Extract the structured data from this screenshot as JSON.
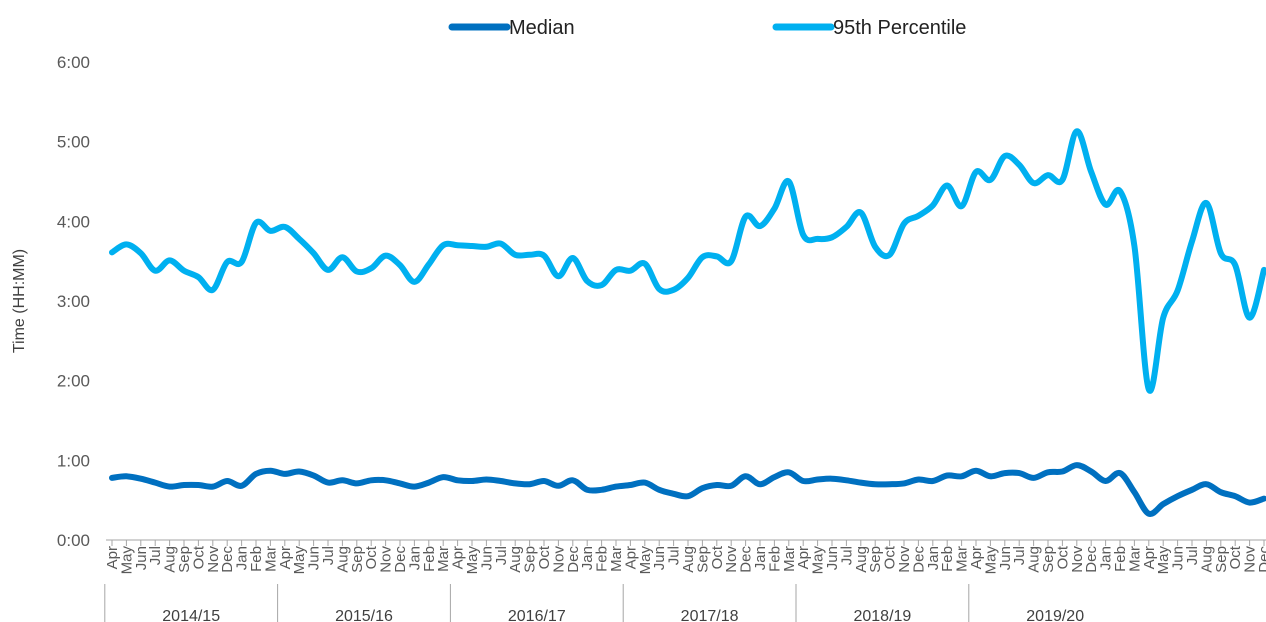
{
  "chart_data": {
    "type": "line",
    "title": "",
    "ylabel": "Time (HH:MM)",
    "xlabel": "",
    "y_unit": "hours",
    "ylim": [
      0,
      6
    ],
    "y_ticks": [
      {
        "value": 0,
        "label": "0:00"
      },
      {
        "value": 1,
        "label": "1:00"
      },
      {
        "value": 2,
        "label": "2:00"
      },
      {
        "value": 3,
        "label": "3:00"
      },
      {
        "value": 4,
        "label": "4:00"
      },
      {
        "value": 5,
        "label": "5:00"
      },
      {
        "value": 6,
        "label": "6:00"
      }
    ],
    "grid": false,
    "legend_position": "top-center",
    "years": [
      "2014/15",
      "2015/16",
      "2016/17",
      "2017/18",
      "2018/19",
      "2019/20"
    ],
    "months": [
      "Apr",
      "May",
      "Jun",
      "Jul",
      "Aug",
      "Sep",
      "Oct",
      "Nov",
      "Dec",
      "Jan",
      "Feb",
      "Mar"
    ],
    "x_months": [
      "Apr",
      "May",
      "Jun",
      "Jul",
      "Aug",
      "Sep",
      "Oct",
      "Nov",
      "Dec",
      "Jan",
      "Feb",
      "Mar",
      "Apr",
      "May",
      "Jun",
      "Jul",
      "Aug",
      "Sep",
      "Oct",
      "Nov",
      "Dec",
      "Jan",
      "Feb",
      "Mar",
      "Apr",
      "May",
      "Jun",
      "Jul",
      "Aug",
      "Sep",
      "Oct",
      "Nov",
      "Dec",
      "Jan",
      "Feb",
      "Mar",
      "Apr",
      "May",
      "Jun",
      "Jul",
      "Aug",
      "Sep",
      "Oct",
      "Nov",
      "Dec",
      "Jan",
      "Feb",
      "Mar",
      "Apr",
      "May",
      "Jun",
      "Jul",
      "Aug",
      "Sep",
      "Oct",
      "Nov",
      "Dec",
      "Jan",
      "Feb",
      "Mar",
      "Apr",
      "May",
      "Jun",
      "Jul",
      "Aug",
      "Sep",
      "Oct",
      "Nov",
      "Dec",
      "Jan",
      "Feb",
      "Mar",
      "Apr",
      "May",
      "Jun",
      "Jul",
      "Aug",
      "Sep",
      "Oct",
      "Nov",
      "Dec"
    ],
    "series": [
      {
        "name": "Median",
        "color": "#0070c0",
        "values": [
          0.78,
          0.8,
          0.77,
          0.72,
          0.67,
          0.69,
          0.69,
          0.67,
          0.74,
          0.68,
          0.83,
          0.87,
          0.83,
          0.86,
          0.81,
          0.72,
          0.75,
          0.71,
          0.75,
          0.75,
          0.71,
          0.67,
          0.72,
          0.79,
          0.75,
          0.74,
          0.76,
          0.74,
          0.71,
          0.7,
          0.74,
          0.68,
          0.75,
          0.63,
          0.63,
          0.67,
          0.69,
          0.72,
          0.63,
          0.58,
          0.55,
          0.65,
          0.69,
          0.68,
          0.8,
          0.7,
          0.79,
          0.85,
          0.74,
          0.76,
          0.77,
          0.75,
          0.72,
          0.7,
          0.7,
          0.71,
          0.76,
          0.74,
          0.81,
          0.8,
          0.87,
          0.8,
          0.84,
          0.84,
          0.78,
          0.85,
          0.86,
          0.94,
          0.86,
          0.74,
          0.84,
          0.6,
          0.33,
          0.45,
          0.55,
          0.63,
          0.7,
          0.6,
          0.55,
          0.47,
          0.52
        ]
      },
      {
        "name": "95th Percentile",
        "color": "#00b0f0",
        "values": [
          3.61,
          3.71,
          3.6,
          3.38,
          3.51,
          3.38,
          3.3,
          3.14,
          3.49,
          3.49,
          3.98,
          3.88,
          3.93,
          3.78,
          3.6,
          3.39,
          3.55,
          3.37,
          3.41,
          3.57,
          3.45,
          3.24,
          3.46,
          3.7,
          3.7,
          3.69,
          3.68,
          3.72,
          3.58,
          3.58,
          3.57,
          3.31,
          3.54,
          3.25,
          3.2,
          3.39,
          3.38,
          3.47,
          3.15,
          3.14,
          3.29,
          3.55,
          3.56,
          3.5,
          4.06,
          3.94,
          4.16,
          4.5,
          3.83,
          3.78,
          3.8,
          3.93,
          4.11,
          3.68,
          3.58,
          3.97,
          4.07,
          4.2,
          4.45,
          4.19,
          4.62,
          4.52,
          4.82,
          4.71,
          4.48,
          4.58,
          4.52,
          5.13,
          4.62,
          4.21,
          4.38,
          3.69,
          1.89,
          2.79,
          3.13,
          3.75,
          4.23,
          3.6,
          3.45,
          2.79,
          3.39
        ]
      }
    ]
  }
}
